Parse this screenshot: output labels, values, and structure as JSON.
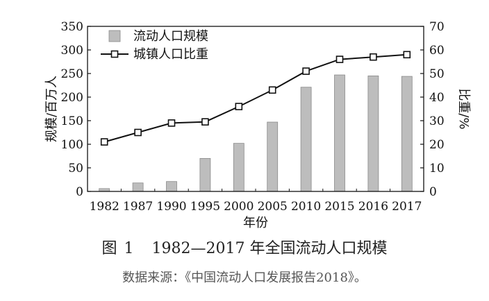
{
  "chart_data": {
    "type": "bar",
    "categories": [
      "1982",
      "1987",
      "1990",
      "1995",
      "2000",
      "2005",
      "2010",
      "2015",
      "2016",
      "2017"
    ],
    "series": [
      {
        "name": "流动人口规模",
        "type": "bar",
        "axis": "left",
        "values": [
          6,
          18,
          21,
          70,
          102,
          147,
          221,
          247,
          245,
          244
        ]
      },
      {
        "name": "城镇人口比重",
        "type": "line",
        "axis": "right",
        "values": [
          21,
          25,
          29,
          29.5,
          36,
          43,
          51,
          56,
          57,
          58
        ]
      }
    ],
    "xlabel": "年份",
    "ylabel": "规模/百万人",
    "y2label": "比重/%",
    "ylim": [
      0,
      350
    ],
    "y2lim": [
      0,
      70
    ],
    "yticks": [
      0,
      50,
      100,
      150,
      200,
      250,
      300,
      350
    ],
    "y2ticks": [
      0,
      10,
      20,
      30,
      40,
      50,
      60,
      70
    ],
    "legend_position": "top-left",
    "grid": false,
    "colors": {
      "bar_fill": "#bdbdbd",
      "bar_stroke": "#8a8a8a",
      "line": "#111111",
      "marker_fill": "#ffffff"
    }
  },
  "caption": {
    "label": "图",
    "number": "1",
    "title": "1982—2017 年全国流动人口规模"
  },
  "source": "数据来源：《中国流动人口发展报告2018》。"
}
